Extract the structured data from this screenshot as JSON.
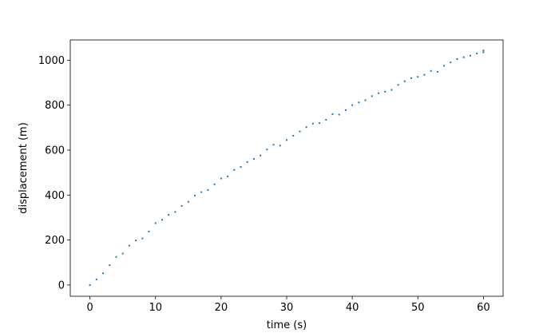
{
  "chart_data": {
    "type": "scatter",
    "title": "",
    "xlabel": "time (s)",
    "ylabel": "displacement (m)",
    "xlim": [
      -3,
      63
    ],
    "ylim": [
      -50,
      1090
    ],
    "xticks": [
      0,
      10,
      20,
      30,
      40,
      50,
      60
    ],
    "yticks": [
      0,
      200,
      400,
      600,
      800,
      1000
    ],
    "grid": false,
    "legend": "none",
    "marker_color": "#1f77b4",
    "series": [
      {
        "x": [
          0,
          1,
          2,
          3,
          4,
          5,
          6,
          7,
          8,
          9,
          10,
          11,
          12,
          13,
          14,
          15,
          16,
          17,
          18,
          19,
          20,
          21,
          22,
          23,
          24,
          25,
          26,
          27,
          28,
          29,
          30,
          31,
          32,
          33,
          34,
          35,
          36,
          37,
          38,
          39,
          40,
          41,
          42,
          43,
          44,
          45,
          46,
          47,
          48,
          49,
          50,
          51,
          52,
          53,
          54,
          55,
          56,
          57,
          58,
          59,
          60,
          60
        ],
        "y": [
          0,
          25,
          52,
          88,
          125,
          140,
          175,
          198,
          207,
          238,
          275,
          290,
          312,
          325,
          352,
          370,
          398,
          413,
          423,
          448,
          474,
          483,
          512,
          525,
          547,
          561,
          576,
          603,
          624,
          620,
          645,
          664,
          683,
          702,
          718,
          720,
          735,
          760,
          758,
          778,
          800,
          812,
          822,
          840,
          853,
          860,
          868,
          890,
          906,
          920,
          926,
          935,
          952,
          948,
          975,
          990,
          1005,
          1013,
          1020,
          1030,
          1043,
          1035
        ]
      }
    ]
  }
}
